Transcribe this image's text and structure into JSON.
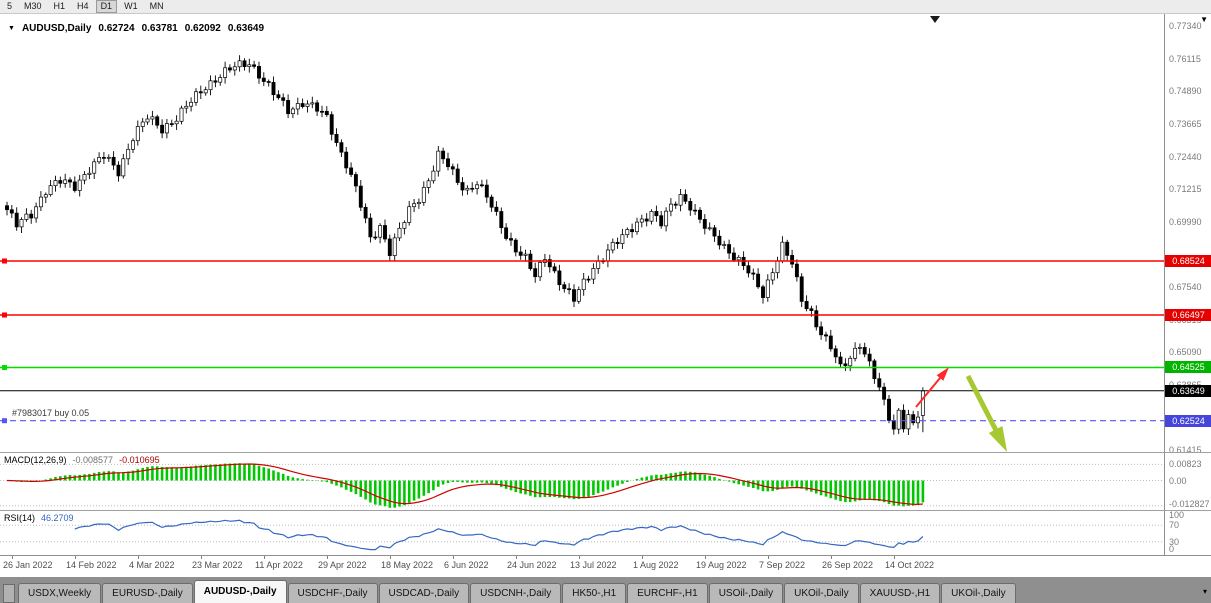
{
  "toolbar": {
    "timeframes": [
      {
        "label": "5",
        "active": false
      },
      {
        "label": "M30",
        "active": false
      },
      {
        "label": "H1",
        "active": false
      },
      {
        "label": "H4",
        "active": false
      },
      {
        "label": "D1",
        "active": true
      },
      {
        "label": "W1",
        "active": false
      },
      {
        "label": "MN",
        "active": false
      }
    ]
  },
  "chart_header": {
    "title": "AUDUSD,Daily",
    "open": "0.62724",
    "high": "0.63781",
    "low": "0.62092",
    "close": "0.63649"
  },
  "price_axis": {
    "ticks": [
      "0.77340",
      "0.76115",
      "0.74890",
      "0.73665",
      "0.72440",
      "0.71215",
      "0.69990",
      "0.67540",
      "0.66315",
      "0.65090",
      "0.63865",
      "0.61415"
    ]
  },
  "macd": {
    "label": "MACD(12,26,9)",
    "value1": "-0.008577",
    "value2": "-0.010695",
    "axis": [
      "0.00823",
      "0.00",
      "-0.012827"
    ]
  },
  "rsi": {
    "label": "RSI(14)",
    "value": "46.2709",
    "axis": [
      "100",
      "70",
      "30",
      "0"
    ]
  },
  "date_axis": {
    "labels": [
      "26 Jan 2022",
      "14 Feb 2022",
      "4 Mar 2022",
      "23 Mar 2022",
      "11 Apr 2022",
      "29 Apr 2022",
      "18 May 2022",
      "6 Jun 2022",
      "24 Jun 2022",
      "13 Jul 2022",
      "1 Aug 2022",
      "19 Aug 2022",
      "7 Sep 2022",
      "26 Sep 2022",
      "14 Oct 2022"
    ]
  },
  "tabs": [
    {
      "label": "USDX,Weekly",
      "active": false
    },
    {
      "label": "EURUSD-,Daily",
      "active": false
    },
    {
      "label": "AUDUSD-,Daily",
      "active": true
    },
    {
      "label": "USDCHF-,Daily",
      "active": false
    },
    {
      "label": "USDCAD-,Daily",
      "active": false
    },
    {
      "label": "USDCNH-,Daily",
      "active": false
    },
    {
      "label": "HK50-,H1",
      "active": false
    },
    {
      "label": "EURCHF-,H1",
      "active": false
    },
    {
      "label": "USOil-,Daily",
      "active": false
    },
    {
      "label": "UKOil-,Daily",
      "active": false
    },
    {
      "label": "XAUUSD-,H1",
      "active": false
    },
    {
      "label": "UKOil-,Daily",
      "active": false
    }
  ],
  "chart_data": {
    "type": "candlestick",
    "symbol": "AUDUSD",
    "timeframe": "Daily",
    "last_bar": {
      "open": 0.62724,
      "high": 0.63781,
      "low": 0.62092,
      "close": 0.63649
    },
    "y_range": [
      0.6135,
      0.778
    ],
    "candle_count": 190,
    "close_waypoints": [
      [
        0,
        0.7045
      ],
      [
        2,
        0.6985
      ],
      [
        5,
        0.703
      ],
      [
        8,
        0.712
      ],
      [
        11,
        0.715
      ],
      [
        14,
        0.7135
      ],
      [
        17,
        0.72
      ],
      [
        20,
        0.7245
      ],
      [
        23,
        0.719
      ],
      [
        26,
        0.732
      ],
      [
        29,
        0.739
      ],
      [
        32,
        0.735
      ],
      [
        35,
        0.739
      ],
      [
        38,
        0.745
      ],
      [
        41,
        0.751
      ],
      [
        44,
        0.755
      ],
      [
        47,
        0.758
      ],
      [
        50,
        0.76
      ],
      [
        52,
        0.7555
      ],
      [
        55,
        0.748
      ],
      [
        58,
        0.742
      ],
      [
        61,
        0.745
      ],
      [
        64,
        0.742
      ],
      [
        66,
        0.739
      ],
      [
        68,
        0.73
      ],
      [
        70,
        0.722
      ],
      [
        72,
        0.712
      ],
      [
        74,
        0.7
      ],
      [
        75,
        0.6935
      ],
      [
        77,
        0.6985
      ],
      [
        79,
        0.689
      ],
      [
        81,
        0.6965
      ],
      [
        83,
        0.704
      ],
      [
        85,
        0.709
      ],
      [
        87,
        0.716
      ],
      [
        89,
        0.725
      ],
      [
        91,
        0.721
      ],
      [
        93,
        0.715
      ],
      [
        95,
        0.712
      ],
      [
        97,
        0.715
      ],
      [
        99,
        0.709
      ],
      [
        101,
        0.702
      ],
      [
        103,
        0.695
      ],
      [
        105,
        0.69
      ],
      [
        107,
        0.686
      ],
      [
        109,
        0.679
      ],
      [
        111,
        0.687
      ],
      [
        113,
        0.681
      ],
      [
        115,
        0.675
      ],
      [
        117,
        0.6705
      ],
      [
        119,
        0.677
      ],
      [
        121,
        0.683
      ],
      [
        124,
        0.689
      ],
      [
        127,
        0.694
      ],
      [
        130,
        0.7
      ],
      [
        133,
        0.703
      ],
      [
        135,
        0.699
      ],
      [
        137,
        0.706
      ],
      [
        139,
        0.71
      ],
      [
        141,
        0.706
      ],
      [
        143,
        0.7
      ],
      [
        145,
        0.696
      ],
      [
        147,
        0.693
      ],
      [
        149,
        0.689
      ],
      [
        151,
        0.685
      ],
      [
        153,
        0.681
      ],
      [
        155,
        0.676
      ],
      [
        156,
        0.673
      ],
      [
        158,
        0.682
      ],
      [
        160,
        0.6905
      ],
      [
        162,
        0.684
      ],
      [
        164,
        0.671
      ],
      [
        166,
        0.666
      ],
      [
        168,
        0.658
      ],
      [
        170,
        0.6525
      ],
      [
        172,
        0.645
      ],
      [
        174,
        0.6495
      ],
      [
        176,
        0.6545
      ],
      [
        178,
        0.646
      ],
      [
        180,
        0.637
      ],
      [
        182,
        0.627
      ],
      [
        183,
        0.6225
      ],
      [
        184,
        0.629
      ],
      [
        185,
        0.624
      ],
      [
        186,
        0.627
      ],
      [
        187,
        0.623
      ],
      [
        188,
        0.6272
      ],
      [
        189,
        0.63649
      ]
    ],
    "levels": [
      {
        "price": 0.68524,
        "color": "#ff0000",
        "badge_bg": "#e60000",
        "style": "solid",
        "width": 1.4,
        "handle": true
      },
      {
        "price": 0.66497,
        "color": "#ff0000",
        "badge_bg": "#e60000",
        "style": "solid",
        "width": 1.4,
        "handle": true
      },
      {
        "price": 0.64525,
        "color": "#00e000",
        "badge_bg": "#00b400",
        "style": "solid",
        "width": 1.6,
        "handle": true
      },
      {
        "price": 0.63649,
        "color": "#000000",
        "badge_bg": "#000000",
        "style": "solid",
        "width": 1,
        "handle": false
      },
      {
        "price": 0.62524,
        "color": "#5555ff",
        "badge_bg": "#4545dc",
        "style": "dashed",
        "width": 1.2,
        "handle": true,
        "annotation": "#7983017 buy 0.05"
      }
    ],
    "indicators": [
      {
        "name": "MACD",
        "params": [
          12,
          26,
          9
        ],
        "current": [
          -0.008577,
          -0.010695
        ]
      },
      {
        "name": "RSI",
        "params": [
          14
        ],
        "current": 46.2709
      }
    ],
    "annotations": {
      "arrows": [
        {
          "name": "red-up-arrow",
          "color": "#ff2a2a",
          "width": 2,
          "from": [
            916,
            393
          ],
          "to": [
            945,
            358
          ],
          "head": 9
        },
        {
          "name": "yellowgreen-down-arrow",
          "color": "#a8c832",
          "width": 5,
          "from": [
            968,
            362
          ],
          "to": [
            1002,
            428
          ],
          "head": 16
        }
      ],
      "shift_marker_x": 935
    }
  }
}
